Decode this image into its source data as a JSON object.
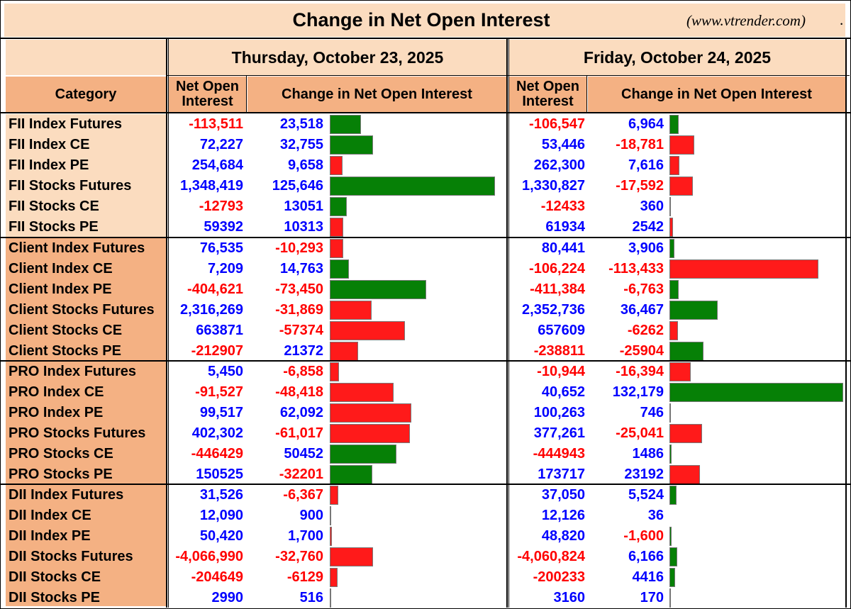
{
  "title": "Change in Net Open Interest",
  "website": "(www.vtrender.com)",
  "title_dot": ".",
  "headers": {
    "category": "Category",
    "net_open_interest": "Net Open Interest",
    "change": "Change in Net Open Interest"
  },
  "colors": {
    "positive_text": "#0000ff",
    "negative_text": "#ff0000",
    "bar_green": "#068006",
    "bar_red": "#ff1a1a",
    "header_peach": "#fbdcbf",
    "header_orange": "#f4b183"
  },
  "chart_data": {
    "type": "table",
    "dates": [
      "Thursday, October 23, 2025",
      "Friday, October 24, 2025"
    ],
    "columns": [
      "Category",
      "Net Open Interest",
      "Change in Net Open Interest"
    ],
    "groups": [
      {
        "name": "FII",
        "rows": [
          {
            "category": "FII Index Futures",
            "d1_noi": "-113,511",
            "d1_chg": "23,518",
            "d2_noi": "-106,547",
            "d2_chg": "6,964"
          },
          {
            "category": "FII Index CE",
            "d1_noi": "72,227",
            "d1_chg": "32,755",
            "d2_noi": "53,446",
            "d2_chg": "-18,781"
          },
          {
            "category": "FII Index PE",
            "d1_noi": "254,684",
            "d1_chg": "9,658",
            "d2_noi": "262,300",
            "d2_chg": "7,616"
          },
          {
            "category": "FII Stocks Futures",
            "d1_noi": "1,348,419",
            "d1_chg": "125,646",
            "d2_noi": "1,330,827",
            "d2_chg": "-17,592"
          },
          {
            "category": "FII Stocks CE",
            "d1_noi": "-12793",
            "d1_chg": "13051",
            "d2_noi": "-12433",
            "d2_chg": "360"
          },
          {
            "category": "FII Stocks PE",
            "d1_noi": "59392",
            "d1_chg": "10313",
            "d2_noi": "61934",
            "d2_chg": "2542"
          }
        ]
      },
      {
        "name": "Client",
        "rows": [
          {
            "category": "Client Index Futures",
            "d1_noi": "76,535",
            "d1_chg": "-10,293",
            "d2_noi": "80,441",
            "d2_chg": "3,906"
          },
          {
            "category": "Client Index CE",
            "d1_noi": "7,209",
            "d1_chg": "14,763",
            "d2_noi": "-106,224",
            "d2_chg": "-113,433"
          },
          {
            "category": "Client Index PE",
            "d1_noi": "-404,621",
            "d1_chg": "-73,450",
            "d2_noi": "-411,384",
            "d2_chg": "-6,763"
          },
          {
            "category": "Client Stocks Futures",
            "d1_noi": "2,316,269",
            "d1_chg": "-31,869",
            "d2_noi": "2,352,736",
            "d2_chg": "36,467"
          },
          {
            "category": "Client Stocks CE",
            "d1_noi": "663871",
            "d1_chg": "-57374",
            "d2_noi": "657609",
            "d2_chg": "-6262"
          },
          {
            "category": "Client Stocks PE",
            "d1_noi": "-212907",
            "d1_chg": "21372",
            "d2_noi": "-238811",
            "d2_chg": "-25904"
          }
        ]
      },
      {
        "name": "PRO",
        "rows": [
          {
            "category": "PRO Index Futures",
            "d1_noi": "5,450",
            "d1_chg": "-6,858",
            "d2_noi": "-10,944",
            "d2_chg": "-16,394"
          },
          {
            "category": "PRO Index CE",
            "d1_noi": "-91,527",
            "d1_chg": "-48,418",
            "d2_noi": "40,652",
            "d2_chg": "132,179"
          },
          {
            "category": "PRO Index PE",
            "d1_noi": "99,517",
            "d1_chg": "62,092",
            "d2_noi": "100,263",
            "d2_chg": "746"
          },
          {
            "category": "PRO Stocks Futures",
            "d1_noi": "402,302",
            "d1_chg": "-61,017",
            "d2_noi": "377,261",
            "d2_chg": "-25,041"
          },
          {
            "category": "PRO Stocks CE",
            "d1_noi": "-446429",
            "d1_chg": "50452",
            "d2_noi": "-444943",
            "d2_chg": "1486"
          },
          {
            "category": "PRO Stocks PE",
            "d1_noi": "150525",
            "d1_chg": "-32201",
            "d2_noi": "173717",
            "d2_chg": "23192"
          }
        ]
      },
      {
        "name": "DII",
        "rows": [
          {
            "category": "DII Index Futures",
            "d1_noi": "31,526",
            "d1_chg": "-6,367",
            "d2_noi": "37,050",
            "d2_chg": "5,524"
          },
          {
            "category": "DII Index CE",
            "d1_noi": "12,090",
            "d1_chg": "900",
            "d2_noi": "12,126",
            "d2_chg": "36"
          },
          {
            "category": "DII Index PE",
            "d1_noi": "50,420",
            "d1_chg": "1,700",
            "d2_noi": "48,820",
            "d2_chg": "-1,600"
          },
          {
            "category": "DII Stocks Futures",
            "d1_noi": "-4,066,990",
            "d1_chg": "-32,760",
            "d2_noi": "-4,060,824",
            "d2_chg": "6,166"
          },
          {
            "category": "DII Stocks CE",
            "d1_noi": "-204649",
            "d1_chg": "-6129",
            "d2_noi": "-200233",
            "d2_chg": "4416"
          },
          {
            "category": "DII Stocks PE",
            "d1_noi": "2990",
            "d1_chg": "516",
            "d2_noi": "3160",
            "d2_chg": "170"
          }
        ]
      }
    ],
    "bar_color_rule": "green when the change is bullish for the category, red when bearish (colors copied from the image)",
    "bars_d1": [
      {
        "magnitude": 23518,
        "color": "green"
      },
      {
        "magnitude": 32755,
        "color": "green"
      },
      {
        "magnitude": 9658,
        "color": "red"
      },
      {
        "magnitude": 125646,
        "color": "green"
      },
      {
        "magnitude": 13051,
        "color": "green"
      },
      {
        "magnitude": 10313,
        "color": "red"
      },
      {
        "magnitude": 10293,
        "color": "red"
      },
      {
        "magnitude": 14763,
        "color": "green"
      },
      {
        "magnitude": 73450,
        "color": "green"
      },
      {
        "magnitude": 31869,
        "color": "red"
      },
      {
        "magnitude": 57374,
        "color": "red"
      },
      {
        "magnitude": 21372,
        "color": "red"
      },
      {
        "magnitude": 6858,
        "color": "red"
      },
      {
        "magnitude": 48418,
        "color": "red"
      },
      {
        "magnitude": 62092,
        "color": "red"
      },
      {
        "magnitude": 61017,
        "color": "red"
      },
      {
        "magnitude": 50452,
        "color": "green"
      },
      {
        "magnitude": 32201,
        "color": "green"
      },
      {
        "magnitude": 6367,
        "color": "red"
      },
      {
        "magnitude": 900,
        "color": "green"
      },
      {
        "magnitude": 1700,
        "color": "red"
      },
      {
        "magnitude": 32760,
        "color": "red"
      },
      {
        "magnitude": 6129,
        "color": "red"
      },
      {
        "magnitude": 516,
        "color": "red"
      }
    ],
    "bars_d2": [
      {
        "magnitude": 6964,
        "color": "green"
      },
      {
        "magnitude": 18781,
        "color": "red"
      },
      {
        "magnitude": 7616,
        "color": "red"
      },
      {
        "magnitude": 17592,
        "color": "red"
      },
      {
        "magnitude": 360,
        "color": "green"
      },
      {
        "magnitude": 2542,
        "color": "red"
      },
      {
        "magnitude": 3906,
        "color": "green"
      },
      {
        "magnitude": 113433,
        "color": "red"
      },
      {
        "magnitude": 6763,
        "color": "green"
      },
      {
        "magnitude": 36467,
        "color": "green"
      },
      {
        "magnitude": 6262,
        "color": "red"
      },
      {
        "magnitude": 25904,
        "color": "green"
      },
      {
        "magnitude": 16394,
        "color": "red"
      },
      {
        "magnitude": 132179,
        "color": "green"
      },
      {
        "magnitude": 746,
        "color": "red"
      },
      {
        "magnitude": 25041,
        "color": "red"
      },
      {
        "magnitude": 1486,
        "color": "green"
      },
      {
        "magnitude": 23192,
        "color": "red"
      },
      {
        "magnitude": 5524,
        "color": "green"
      },
      {
        "magnitude": 36,
        "color": "green"
      },
      {
        "magnitude": 1600,
        "color": "green"
      },
      {
        "magnitude": 6166,
        "color": "green"
      },
      {
        "magnitude": 4416,
        "color": "green"
      },
      {
        "magnitude": 170,
        "color": "red"
      }
    ]
  }
}
